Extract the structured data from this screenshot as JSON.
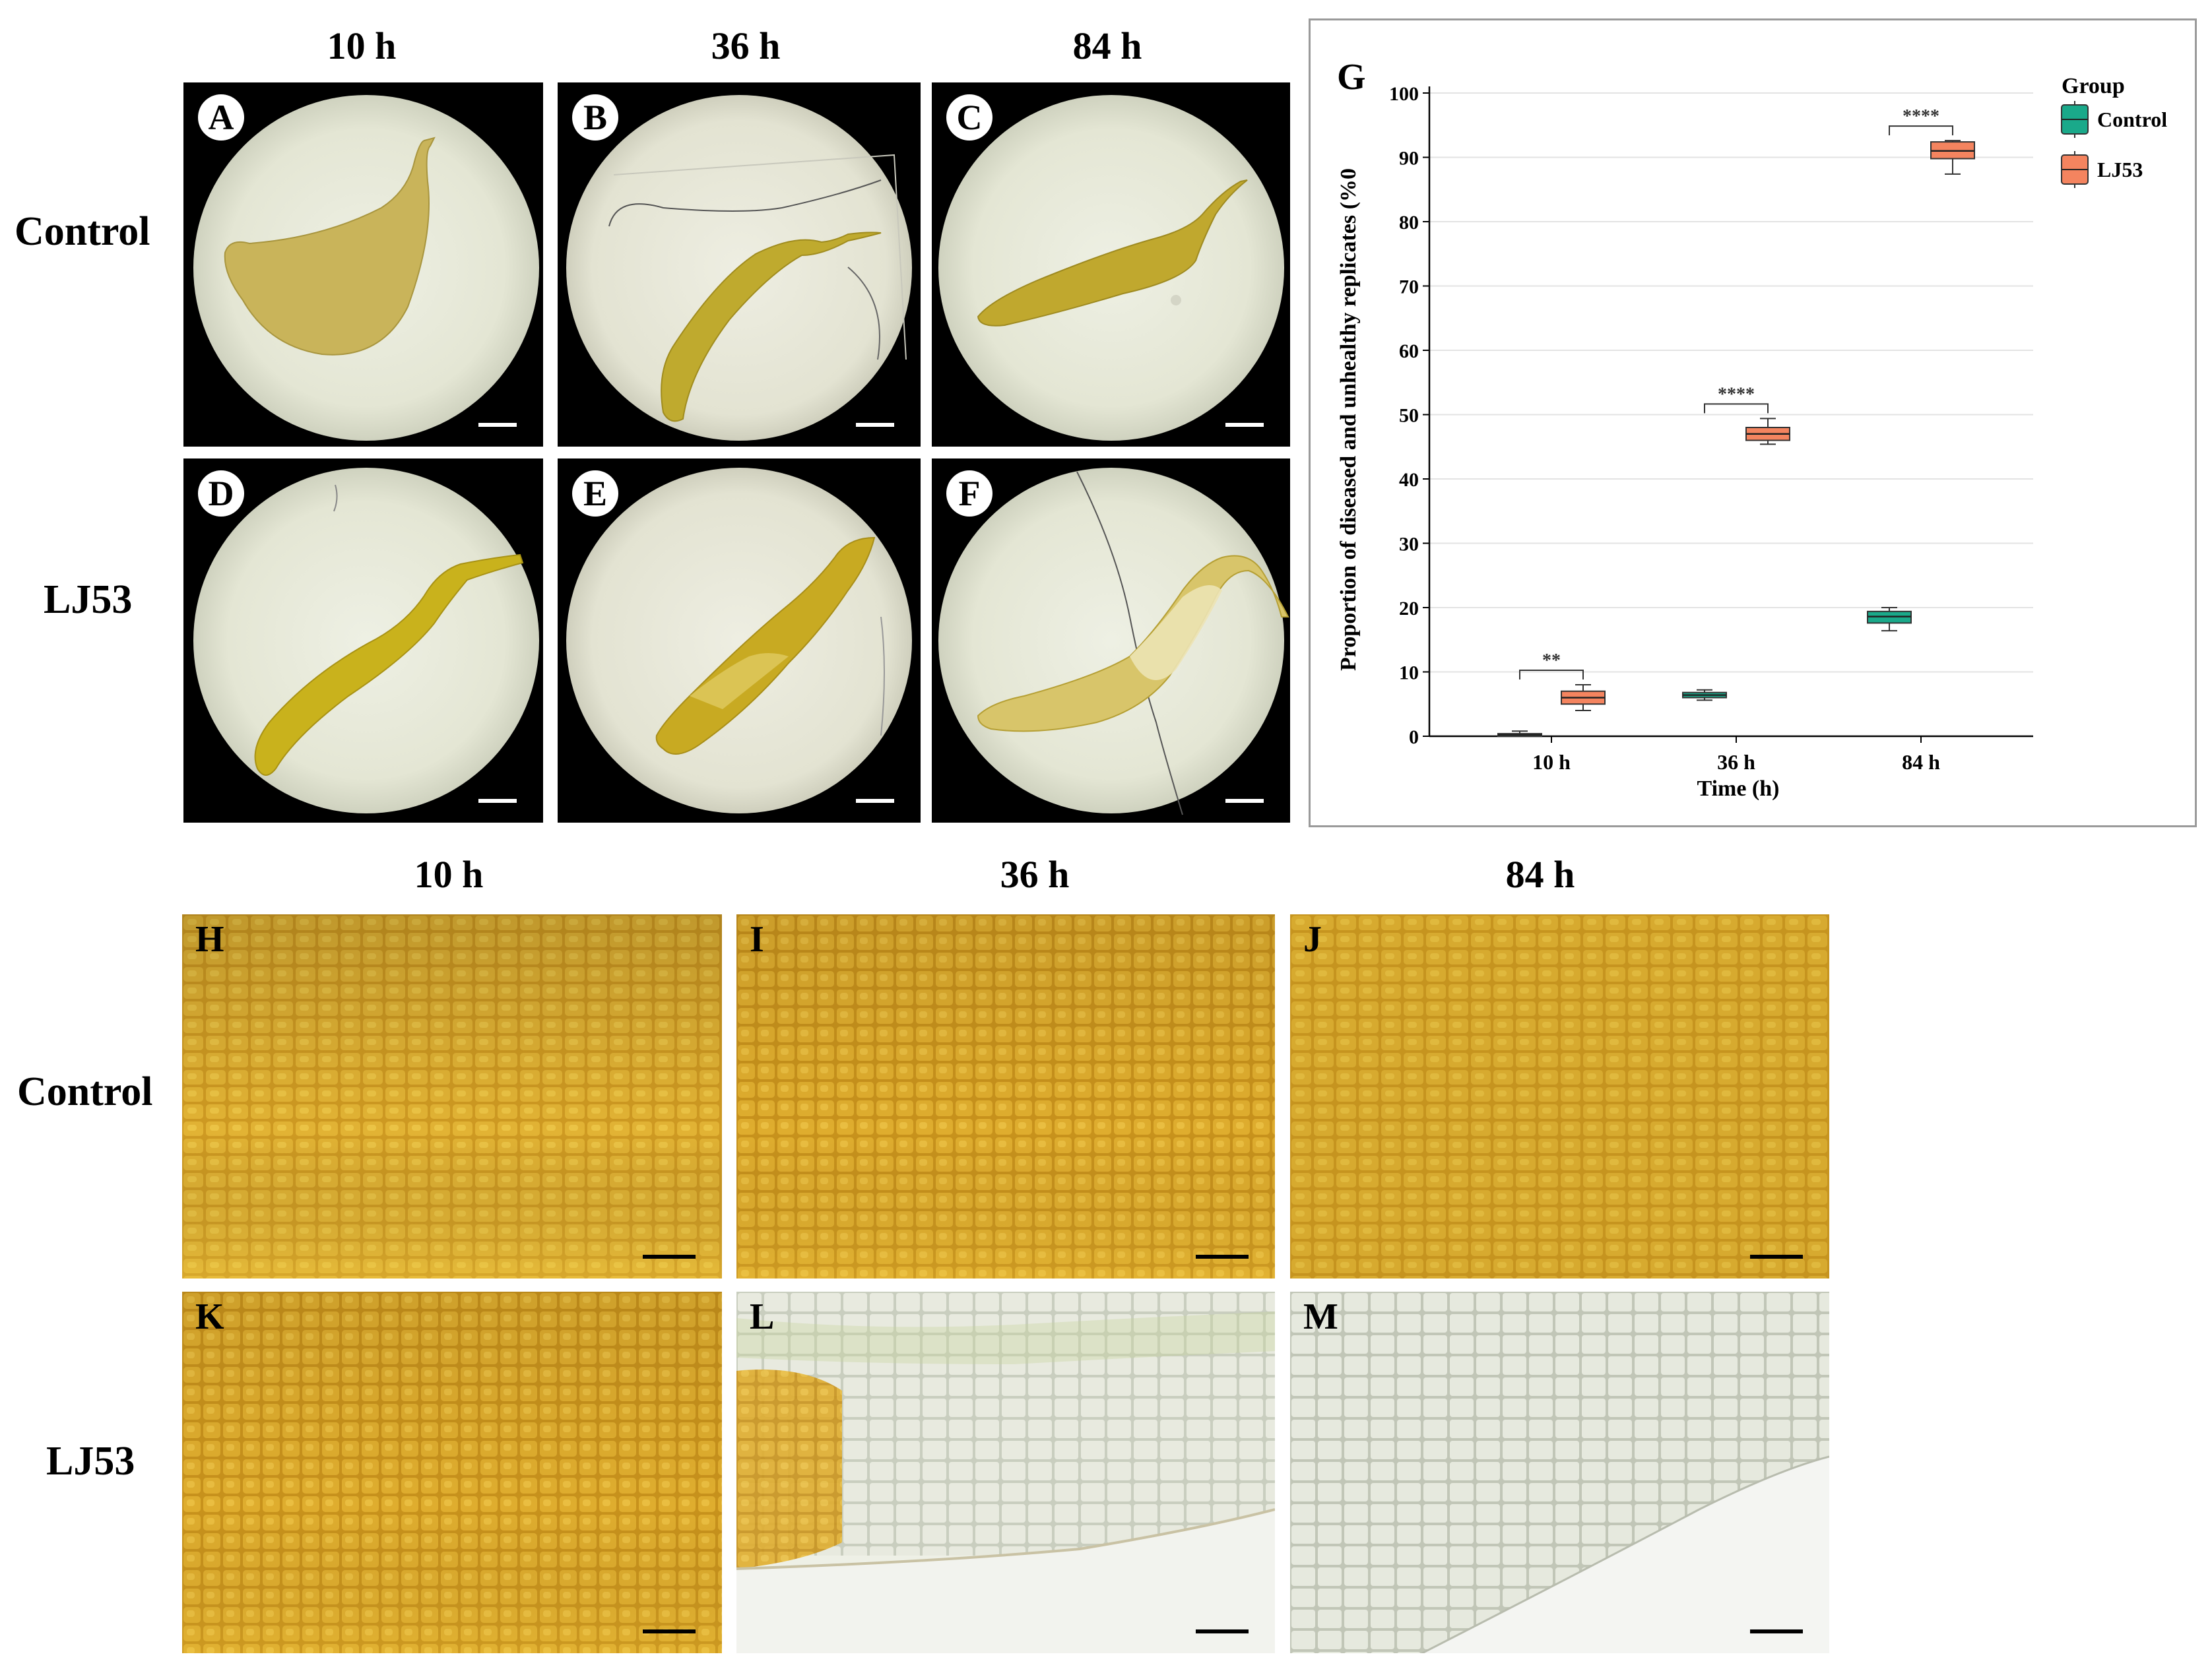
{
  "top": {
    "time_labels": [
      "10 h",
      "36 h",
      "84 h"
    ],
    "row_labels": [
      "Control",
      "LJ53"
    ],
    "panels": [
      "A",
      "B",
      "C",
      "D",
      "E",
      "F"
    ]
  },
  "chart_panel_letter": "G",
  "bottom": {
    "time_labels": [
      "10 h",
      "36 h",
      "84 h"
    ],
    "row_labels": [
      "Control",
      "LJ53"
    ],
    "panels": [
      "H",
      "I",
      "J",
      "K",
      "L",
      "M"
    ]
  },
  "chart_data": {
    "type": "box",
    "ylabel": "Proportion of diseased and unhealthy replicates (%0",
    "xlabel": "Time (h)",
    "categories": [
      "10 h",
      "36 h",
      "84 h"
    ],
    "ylim": [
      0,
      100
    ],
    "yticks": [
      0,
      10,
      20,
      30,
      40,
      50,
      60,
      70,
      80,
      90,
      100
    ],
    "grid": true,
    "legend": {
      "title": "Group",
      "position": "top-right"
    },
    "series": [
      {
        "name": "Control",
        "color": "#1aa98a",
        "boxes": [
          {
            "min": 0,
            "q1": 0.1,
            "median": 0.2,
            "q3": 0.4,
            "max": 0.8
          },
          {
            "min": 5.6,
            "q1": 6.0,
            "median": 6.4,
            "q3": 6.8,
            "max": 7.2
          },
          {
            "min": 16.4,
            "q1": 17.6,
            "median": 18.6,
            "q3": 19.4,
            "max": 20.0
          }
        ]
      },
      {
        "name": "LJ53",
        "color": "#f4845f",
        "boxes": [
          {
            "min": 4.0,
            "q1": 5.0,
            "median": 6.0,
            "q3": 7.0,
            "max": 8.0
          },
          {
            "min": 45.4,
            "q1": 46.0,
            "median": 47.0,
            "q3": 48.0,
            "max": 49.4
          },
          {
            "min": 87.4,
            "q1": 89.8,
            "median": 91.0,
            "q3": 92.4,
            "max": 92.6
          }
        ]
      }
    ],
    "significance": [
      {
        "category": "10 h",
        "label": "**"
      },
      {
        "category": "36 h",
        "label": "****"
      },
      {
        "category": "84 h",
        "label": "****"
      }
    ]
  }
}
